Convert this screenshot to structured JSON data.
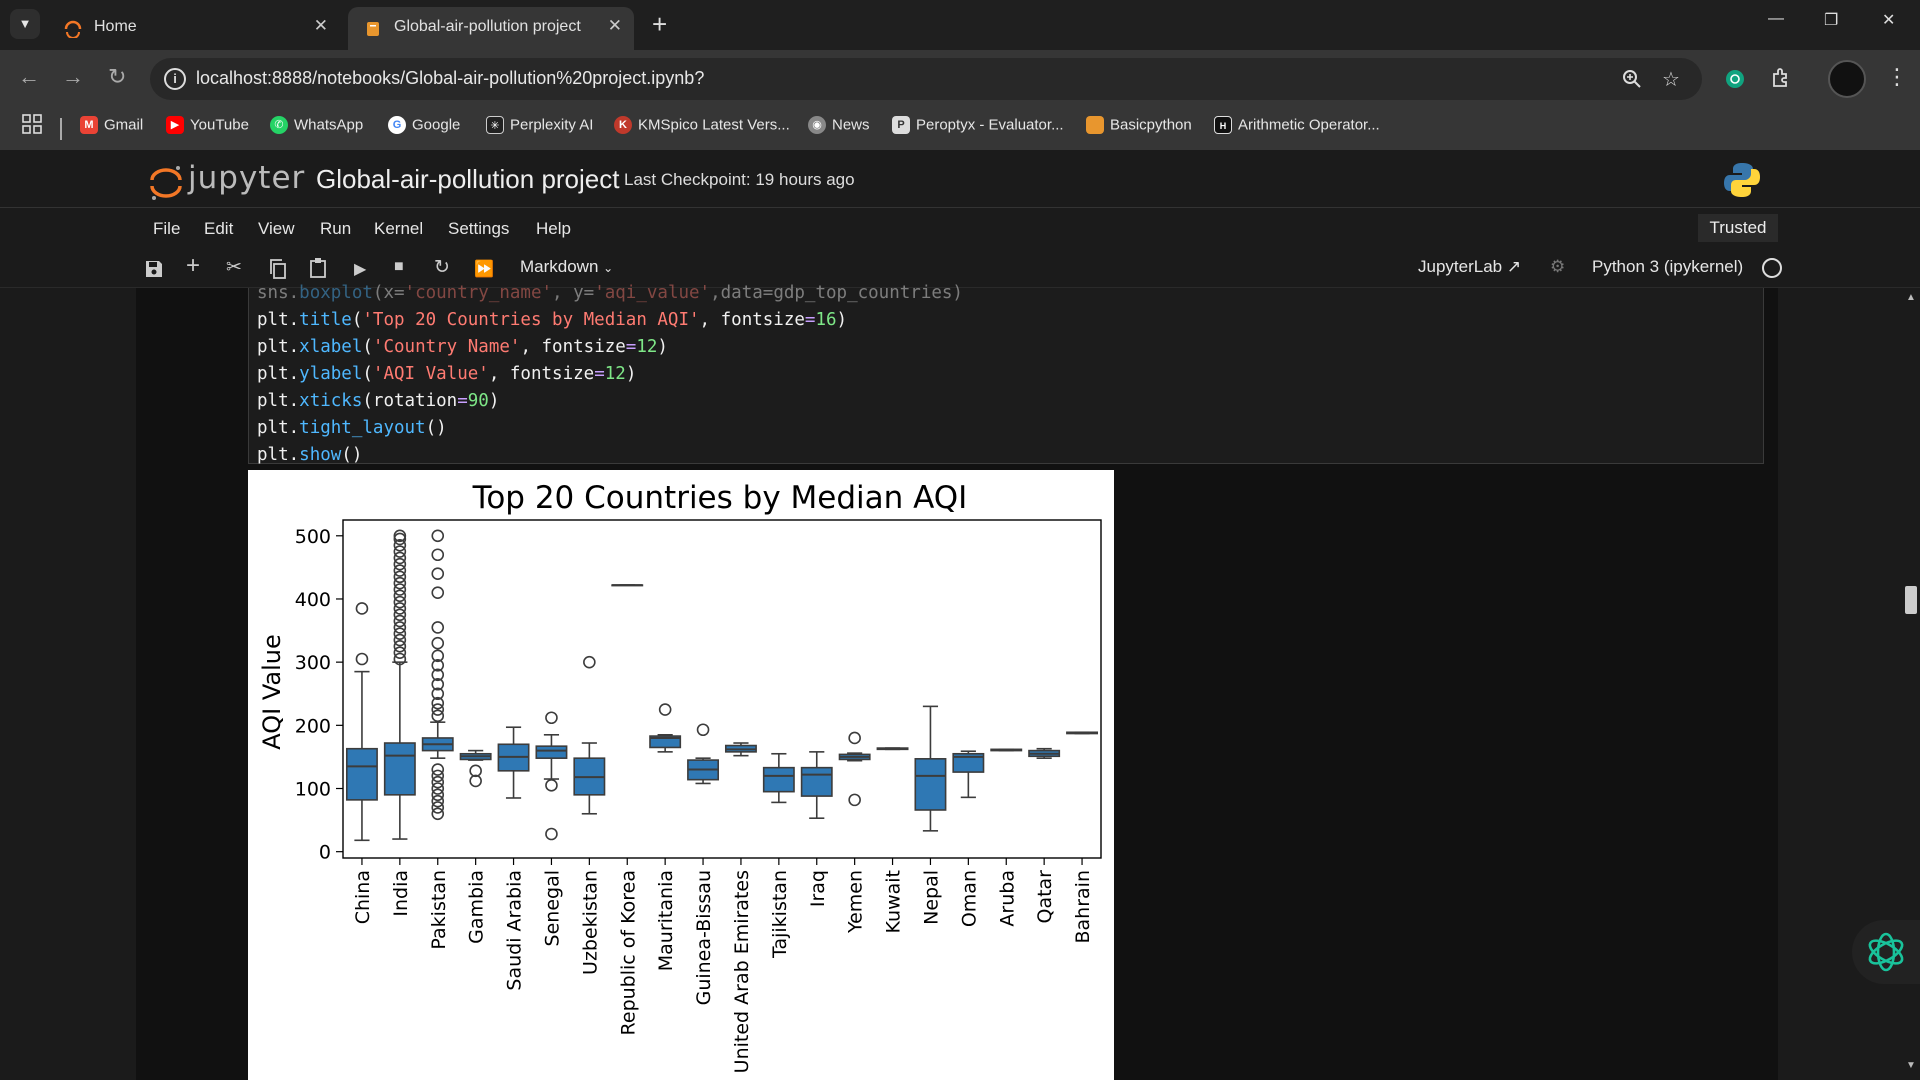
{
  "browser": {
    "tabs": [
      {
        "label": "Home",
        "active": false
      },
      {
        "label": "Global-air-pollution project",
        "active": true
      }
    ],
    "url": "localhost:8888/notebooks/Global-air-pollution%20project.ipynb?",
    "bookmarks": [
      "Gmail",
      "YouTube",
      "WhatsApp",
      "Google",
      "Perplexity AI",
      "KMSpico Latest Vers...",
      "News",
      "Peroptyx - Evaluator...",
      "Basicpython",
      "Arithmetic Operator..."
    ]
  },
  "jupyter": {
    "logo_text": "jupyter",
    "notebook_title": "Global-air-pollution project",
    "checkpoint": "Last Checkpoint: 19 hours ago",
    "menu": [
      "File",
      "Edit",
      "View",
      "Run",
      "Kernel",
      "Settings",
      "Help"
    ],
    "trusted": "Trusted",
    "cell_type": "Markdown",
    "jupyterlab_label": "JupyterLab",
    "kernel_label": "Python 3 (ipykernel)"
  },
  "code": {
    "partial_top": "sns.boxplot(x='country_name', y='aqi_value', data=gdp_top_countries)"
  },
  "chart_data": {
    "type": "box",
    "title": "Top 20 Countries by Median AQI",
    "xlabel": "Country Name",
    "ylabel": "AQI Value",
    "ylim": [
      -10,
      525
    ],
    "yticks": [
      0,
      100,
      200,
      300,
      400,
      500
    ],
    "color": "#2f78b4",
    "categories": [
      "China",
      "India",
      "Pakistan",
      "Gambia",
      "Saudi Arabia",
      "Senegal",
      "Uzbekistan",
      "Republic of Korea",
      "Mauritania",
      "Guinea-Bissau",
      "United Arab Emirates",
      "Tajikistan",
      "Iraq",
      "Yemen",
      "Kuwait",
      "Nepal",
      "Oman",
      "Aruba",
      "Qatar",
      "Bahrain"
    ],
    "boxes": [
      {
        "q1": 82,
        "median": 135,
        "q3": 163,
        "whisker_low": 18,
        "whisker_high": 285,
        "outliers": [
          305,
          385
        ]
      },
      {
        "q1": 90,
        "median": 152,
        "q3": 172,
        "whisker_low": 20,
        "whisker_high": 300,
        "outliers": [
          305,
          315,
          325,
          335,
          345,
          355,
          365,
          375,
          385,
          395,
          405,
          415,
          425,
          435,
          445,
          455,
          465,
          475,
          485,
          495,
          500
        ]
      },
      {
        "q1": 160,
        "median": 170,
        "q3": 180,
        "whisker_low": 148,
        "whisker_high": 205,
        "outliers": [
          60,
          70,
          80,
          90,
          100,
          110,
          120,
          130,
          215,
          225,
          235,
          250,
          265,
          280,
          295,
          310,
          330,
          355,
          410,
          440,
          470,
          500
        ]
      },
      {
        "q1": 146,
        "median": 151,
        "q3": 155,
        "whisker_low": 145,
        "whisker_high": 160,
        "outliers": [
          112,
          128
        ]
      },
      {
        "q1": 128,
        "median": 150,
        "q3": 170,
        "whisker_low": 85,
        "whisker_high": 197,
        "outliers": []
      },
      {
        "q1": 148,
        "median": 160,
        "q3": 167,
        "whisker_low": 115,
        "whisker_high": 185,
        "outliers": [
          28,
          105,
          212
        ]
      },
      {
        "q1": 90,
        "median": 118,
        "q3": 148,
        "whisker_low": 60,
        "whisker_high": 172,
        "outliers": [
          300
        ]
      },
      {
        "q1": 422,
        "median": 422,
        "q3": 422,
        "whisker_low": 422,
        "whisker_high": 422,
        "outliers": []
      },
      {
        "q1": 165,
        "median": 180,
        "q3": 183,
        "whisker_low": 158,
        "whisker_high": 185,
        "outliers": [
          225
        ]
      },
      {
        "q1": 114,
        "median": 130,
        "q3": 145,
        "whisker_low": 108,
        "whisker_high": 148,
        "outliers": [
          193
        ]
      },
      {
        "q1": 158,
        "median": 162,
        "q3": 168,
        "whisker_low": 152,
        "whisker_high": 172,
        "outliers": []
      },
      {
        "q1": 95,
        "median": 120,
        "q3": 133,
        "whisker_low": 78,
        "whisker_high": 155,
        "outliers": []
      },
      {
        "q1": 88,
        "median": 122,
        "q3": 133,
        "whisker_low": 53,
        "whisker_high": 158,
        "outliers": []
      },
      {
        "q1": 146,
        "median": 150,
        "q3": 154,
        "whisker_low": 144,
        "whisker_high": 156,
        "outliers": [
          82,
          180
        ]
      },
      {
        "q1": 162,
        "median": 163,
        "q3": 164,
        "whisker_low": 162,
        "whisker_high": 164,
        "outliers": []
      },
      {
        "q1": 66,
        "median": 120,
        "q3": 147,
        "whisker_low": 33,
        "whisker_high": 230,
        "outliers": []
      },
      {
        "q1": 126,
        "median": 150,
        "q3": 155,
        "whisker_low": 86,
        "whisker_high": 159,
        "outliers": []
      },
      {
        "q1": 160,
        "median": 161,
        "q3": 162,
        "whisker_low": 160,
        "whisker_high": 162,
        "outliers": []
      },
      {
        "q1": 151,
        "median": 155,
        "q3": 160,
        "whisker_low": 148,
        "whisker_high": 163,
        "outliers": []
      },
      {
        "q1": 187,
        "median": 188,
        "q3": 189,
        "whisker_low": 187,
        "whisker_high": 189,
        "outliers": []
      }
    ]
  }
}
